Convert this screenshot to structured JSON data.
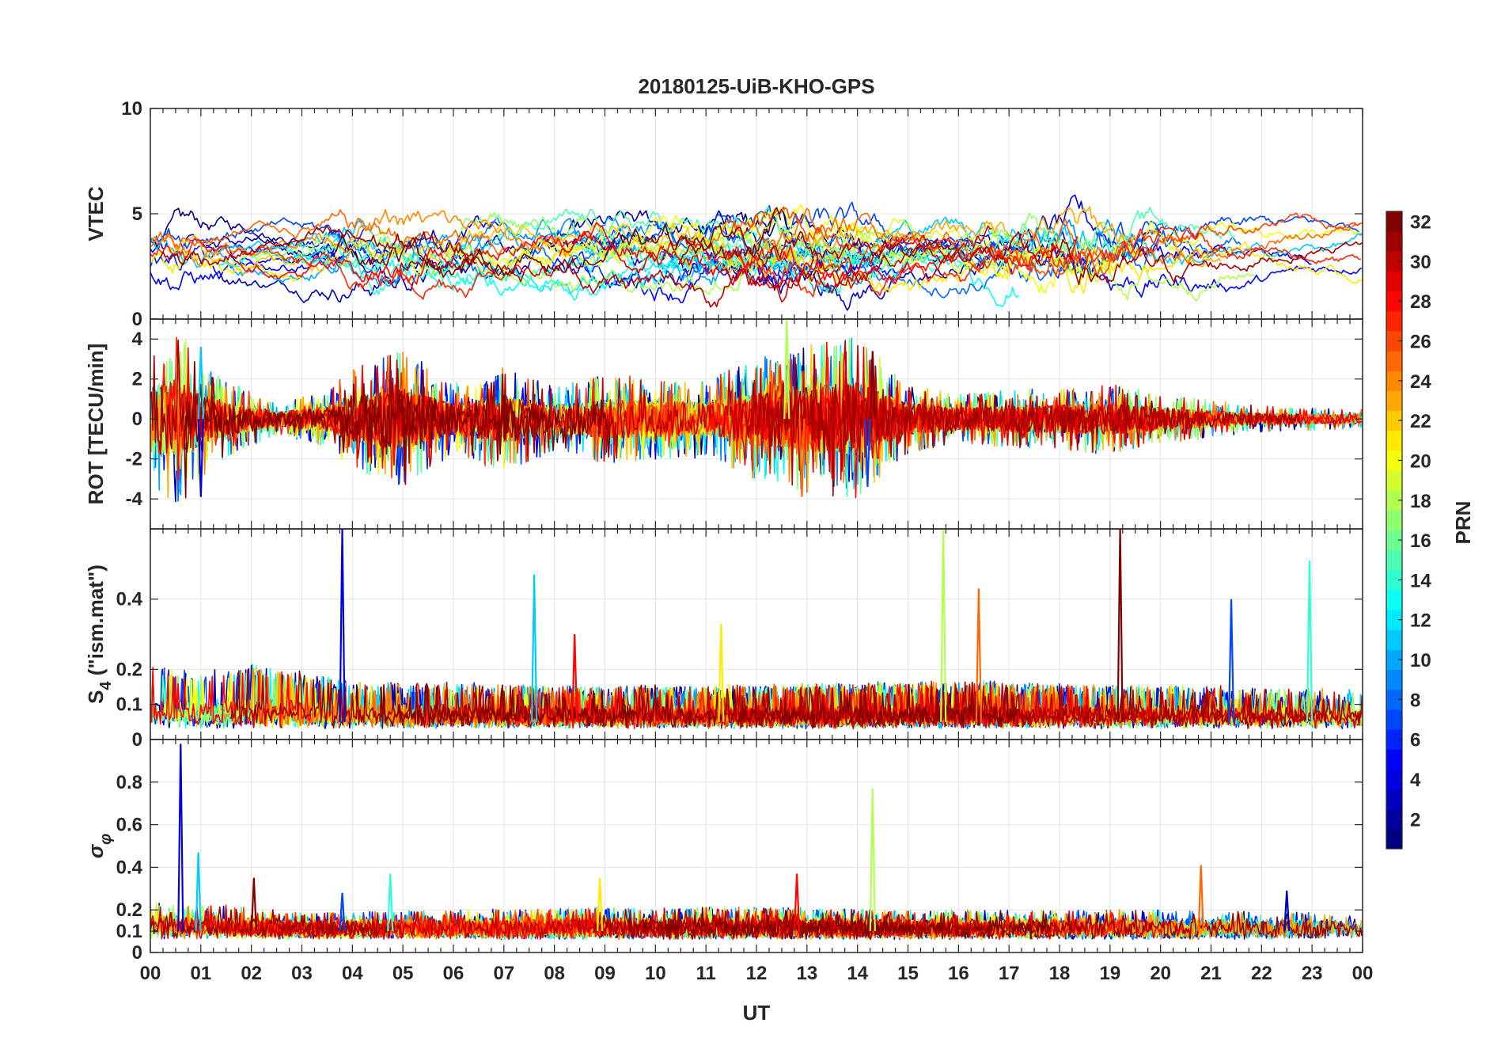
{
  "chart_data": {
    "type": "line",
    "title": "20180125-UiB-KHO-GPS",
    "xlabel": "UT",
    "x_ticks": [
      "00",
      "01",
      "02",
      "03",
      "04",
      "05",
      "06",
      "07",
      "08",
      "09",
      "10",
      "11",
      "12",
      "13",
      "14",
      "15",
      "16",
      "17",
      "18",
      "19",
      "20",
      "21",
      "22",
      "23",
      "00"
    ],
    "xlim": [
      0,
      24
    ],
    "grid": true,
    "colorbar": {
      "label": "PRN",
      "range": [
        1,
        32
      ],
      "ticks": [
        "2",
        "4",
        "6",
        "8",
        "10",
        "12",
        "14",
        "16",
        "18",
        "20",
        "22",
        "24",
        "26",
        "28",
        "30",
        "32"
      ],
      "colormap": "jet"
    },
    "panels": [
      {
        "ylabel": "VTEC",
        "ylim": [
          0,
          10
        ],
        "y_ticks": [
          "0",
          "5",
          "10"
        ],
        "baseline": 3.2,
        "activity": [
          [
            0,
            1.6
          ],
          [
            0.6,
            2.4
          ],
          [
            1,
            1.6
          ],
          [
            2.5,
            0.8
          ],
          [
            3.8,
            1.8
          ],
          [
            5,
            2.2
          ],
          [
            7,
            1.6
          ],
          [
            9,
            1.8
          ],
          [
            11.5,
            2.2
          ],
          [
            12.5,
            2.6
          ],
          [
            14,
            2.2
          ],
          [
            15,
            1.4
          ],
          [
            16,
            1.6
          ],
          [
            17.5,
            2.6
          ],
          [
            18.5,
            3.0
          ],
          [
            19.5,
            2.2
          ],
          [
            20.5,
            1.6
          ],
          [
            22,
            1.0
          ],
          [
            24,
            0.8
          ]
        ]
      },
      {
        "ylabel": "ROT [TECU/min]",
        "ylim": [
          -5.5,
          5
        ],
        "y_ticks": [
          "-4",
          "-2",
          "0",
          "2",
          "4"
        ],
        "baseline": 0,
        "peaks": [
          {
            "x": 1.0,
            "y": -3.9
          },
          {
            "x": 1.0,
            "y": 3.6
          },
          {
            "x": 12.6,
            "y": 5.0
          },
          {
            "x": 12.9,
            "y": -3.9
          },
          {
            "x": 14.3,
            "y": 3.4
          },
          {
            "x": 14.2,
            "y": -3.4
          }
        ],
        "activity": [
          [
            0,
            2.4
          ],
          [
            0.5,
            2.8
          ],
          [
            1.5,
            1.2
          ],
          [
            2.5,
            0.5
          ],
          [
            3.5,
            0.9
          ],
          [
            4,
            1.6
          ],
          [
            5,
            2.2
          ],
          [
            6,
            1.1
          ],
          [
            7,
            1.7
          ],
          [
            8,
            1.0
          ],
          [
            9,
            1.4
          ],
          [
            10,
            1.3
          ],
          [
            11,
            1.2
          ],
          [
            12,
            1.9
          ],
          [
            13,
            2.3
          ],
          [
            14,
            2.6
          ],
          [
            15,
            1.1
          ],
          [
            16,
            0.8
          ],
          [
            17,
            0.9
          ],
          [
            18,
            1.0
          ],
          [
            19,
            1.1
          ],
          [
            20,
            0.8
          ],
          [
            21,
            0.6
          ],
          [
            22,
            0.4
          ],
          [
            24,
            0.3
          ]
        ]
      },
      {
        "ylabel": "S4 (\"ism.mat\")",
        "ylabel_main": "S",
        "ylabel_sub": "4",
        "ylabel_rest": " (\"ism.mat\")",
        "ylim": [
          0,
          0.6
        ],
        "y_ticks": [
          "0",
          "0.1",
          "0.2",
          "0.4"
        ],
        "baseline": 0.05,
        "peaks": [
          {
            "x": 3.8,
            "y": 0.6
          },
          {
            "x": 7.6,
            "y": 0.47
          },
          {
            "x": 15.7,
            "y": 0.6
          },
          {
            "x": 16.4,
            "y": 0.43
          },
          {
            "x": 19.2,
            "y": 0.6
          },
          {
            "x": 21.4,
            "y": 0.4
          },
          {
            "x": 22.95,
            "y": 0.51
          },
          {
            "x": 11.3,
            "y": 0.33
          },
          {
            "x": 8.4,
            "y": 0.3
          }
        ],
        "activity": [
          [
            0,
            0.06
          ],
          [
            1,
            0.05
          ],
          [
            2,
            0.06
          ],
          [
            4,
            0.04
          ],
          [
            8,
            0.035
          ],
          [
            12,
            0.035
          ],
          [
            16,
            0.04
          ],
          [
            20,
            0.035
          ],
          [
            24,
            0.03
          ]
        ]
      },
      {
        "ylabel": "σφ",
        "ylabel_main": "σ",
        "ylabel_sub": "φ",
        "ylim": [
          0,
          1.0
        ],
        "y_ticks": [
          "0",
          "0.1",
          "0.2",
          "0.4",
          "0.6",
          "0.8"
        ],
        "baseline": 0.1,
        "peaks": [
          {
            "x": 0.6,
            "y": 0.98
          },
          {
            "x": 0.95,
            "y": 0.47
          },
          {
            "x": 14.3,
            "y": 0.77
          },
          {
            "x": 20.8,
            "y": 0.41
          },
          {
            "x": 2.05,
            "y": 0.35
          },
          {
            "x": 3.8,
            "y": 0.28
          },
          {
            "x": 4.75,
            "y": 0.37
          },
          {
            "x": 8.9,
            "y": 0.35
          },
          {
            "x": 12.8,
            "y": 0.37
          },
          {
            "x": 22.5,
            "y": 0.29
          }
        ],
        "activity": [
          [
            0,
            0.04
          ],
          [
            1,
            0.04
          ],
          [
            3,
            0.02
          ],
          [
            6,
            0.025
          ],
          [
            9,
            0.03
          ],
          [
            12,
            0.03
          ],
          [
            15,
            0.025
          ],
          [
            18,
            0.025
          ],
          [
            21,
            0.025
          ],
          [
            24,
            0.02
          ]
        ]
      }
    ]
  }
}
